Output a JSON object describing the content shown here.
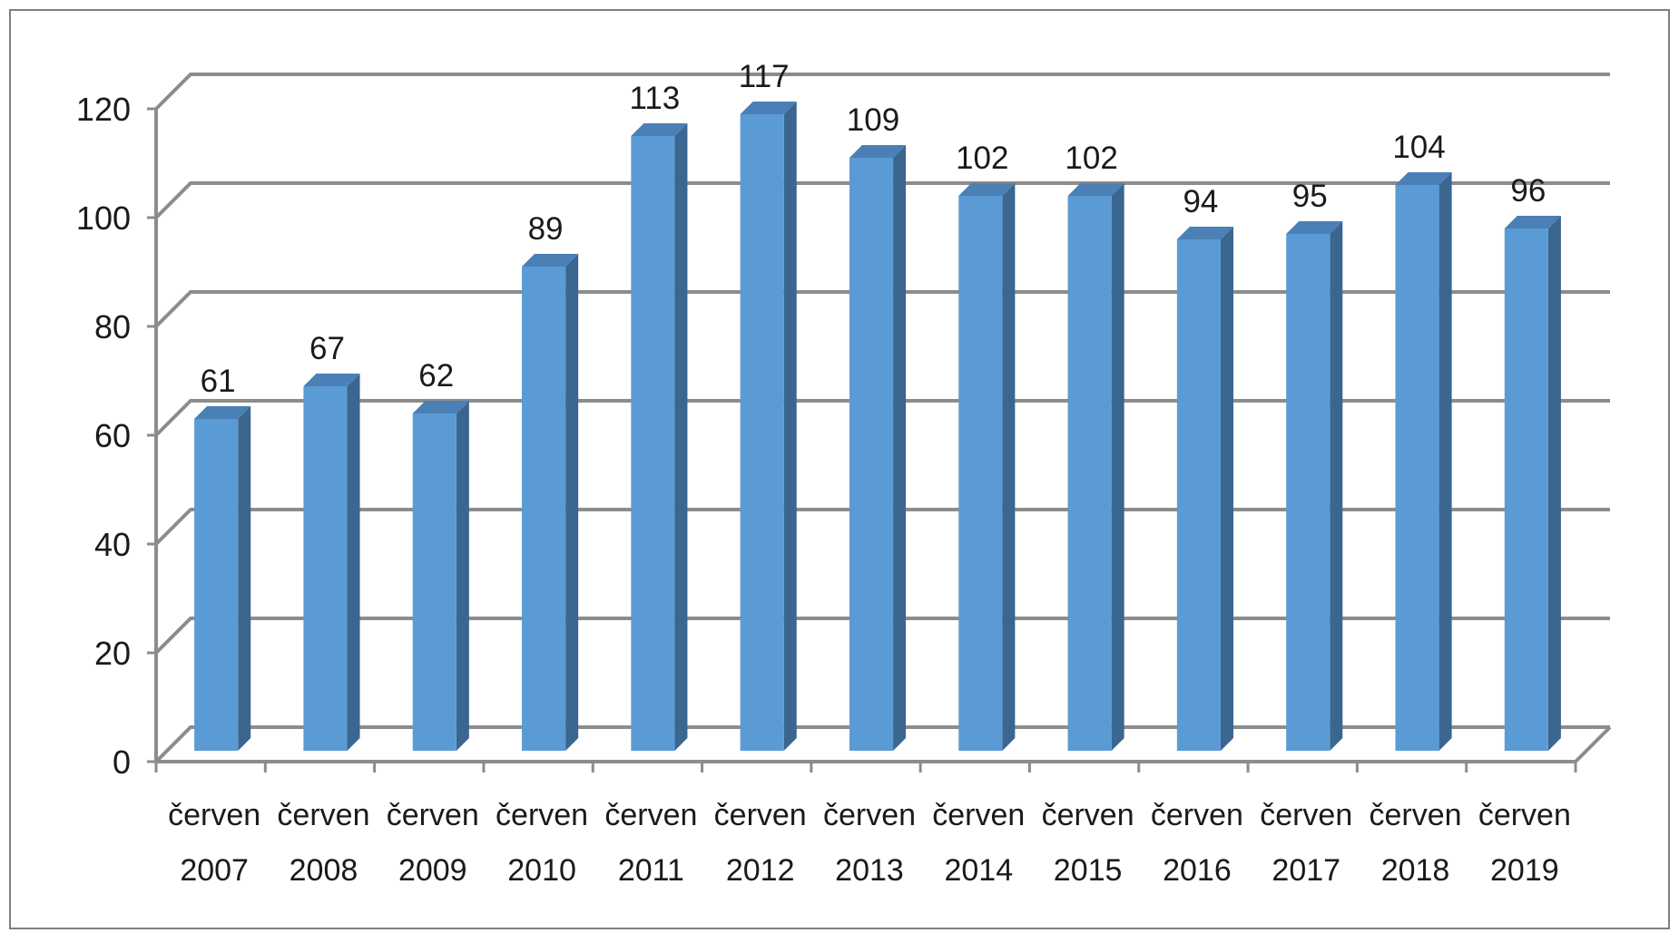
{
  "chart_data": {
    "type": "bar",
    "style": "3d-column",
    "title": "",
    "xlabel": "",
    "ylabel": "",
    "ylim": [
      0,
      120
    ],
    "yticks": [
      0,
      20,
      40,
      60,
      80,
      100,
      120
    ],
    "grid": true,
    "legend": "none",
    "categories": [
      [
        "červen",
        "2007"
      ],
      [
        "červen",
        "2008"
      ],
      [
        "červen",
        "2009"
      ],
      [
        "červen",
        "2010"
      ],
      [
        "červen",
        "2011"
      ],
      [
        "červen",
        "2012"
      ],
      [
        "červen",
        "2013"
      ],
      [
        "červen",
        "2014"
      ],
      [
        "červen",
        "2015"
      ],
      [
        "červen",
        "2016"
      ],
      [
        "červen",
        "2017"
      ],
      [
        "červen",
        "2018"
      ],
      [
        "červen",
        "2019"
      ]
    ],
    "series": [
      {
        "values": [
          61,
          67,
          62,
          89,
          113,
          117,
          109,
          102,
          102,
          94,
          95,
          104,
          96
        ]
      }
    ],
    "colors": {
      "bar_front": "#5b9bd5",
      "bar_side": "#3a6690",
      "bar_top": "#4a80b5",
      "grid": "#8c8c8c",
      "axis": "#8c8c8c"
    }
  }
}
